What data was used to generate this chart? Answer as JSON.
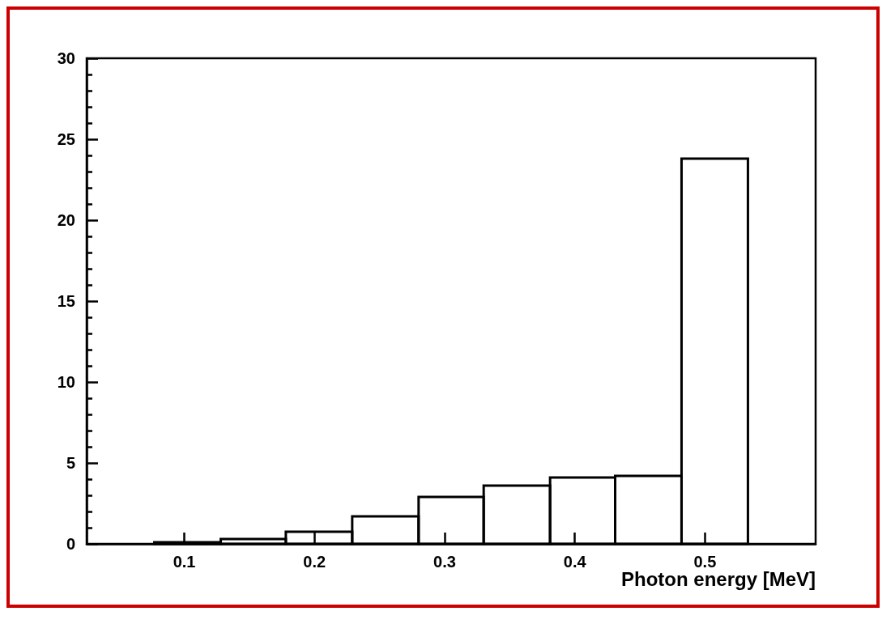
{
  "chart_data": {
    "type": "histogram",
    "xlabel": "Photon energy [MeV]",
    "bins": [
      0.077,
      0.128,
      0.178,
      0.229,
      0.28,
      0.33,
      0.381,
      0.431,
      0.482,
      0.533
    ],
    "values": [
      0.1,
      0.3,
      0.75,
      1.7,
      2.9,
      3.6,
      4.1,
      4.2,
      23.8
    ],
    "color": "#000000",
    "xlim": [
      0.025,
      0.585
    ],
    "xticks": [
      0.1,
      0.2,
      0.3,
      0.4,
      0.5
    ],
    "ylim": [
      0,
      30
    ],
    "yticks": [
      0,
      5,
      10,
      15,
      20,
      25,
      30
    ],
    "grid": false
  }
}
